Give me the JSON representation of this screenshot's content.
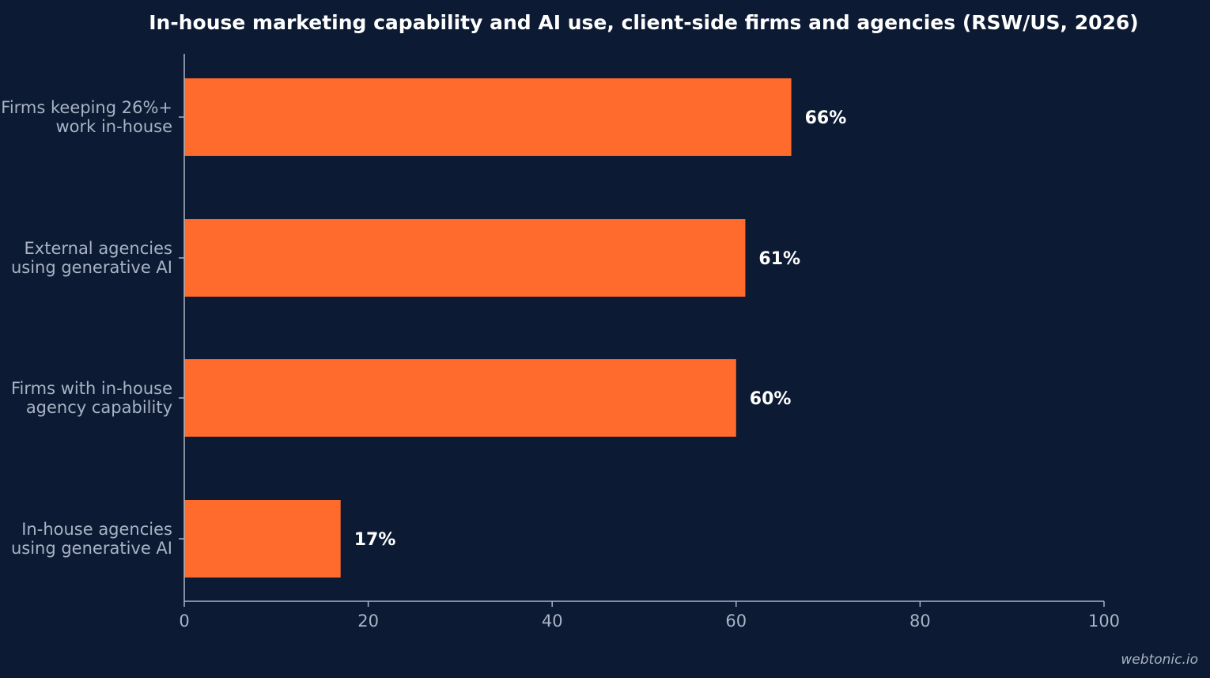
{
  "chart_data": {
    "type": "bar",
    "orientation": "horizontal",
    "title": "In-house marketing capability and AI use, client-side firms and agencies (RSW/US, 2026)",
    "categories": [
      [
        "Firms keeping 26%+",
        "work in-house"
      ],
      [
        "External agencies",
        "using generative AI"
      ],
      [
        "Firms with in-house",
        "agency capability"
      ],
      [
        "In-house agencies",
        "using generative AI"
      ]
    ],
    "values": [
      66,
      61,
      60,
      17
    ],
    "data_labels": [
      "66%",
      "61%",
      "60%",
      "17%"
    ],
    "xlim": [
      0,
      100
    ],
    "xticks": [
      0,
      20,
      40,
      60,
      80,
      100
    ],
    "xtick_labels": [
      "0",
      "20",
      "40",
      "60",
      "80",
      "100"
    ],
    "xlabel": "",
    "ylabel": "",
    "grid": false,
    "legend": "none",
    "colors": {
      "bar": "#ff6b2c",
      "background": "#0c1a33",
      "axis": "#a9b3c4",
      "label_text": "#a9b3c4",
      "value_text": "#ffffff"
    }
  },
  "watermark": "webtonic.io"
}
